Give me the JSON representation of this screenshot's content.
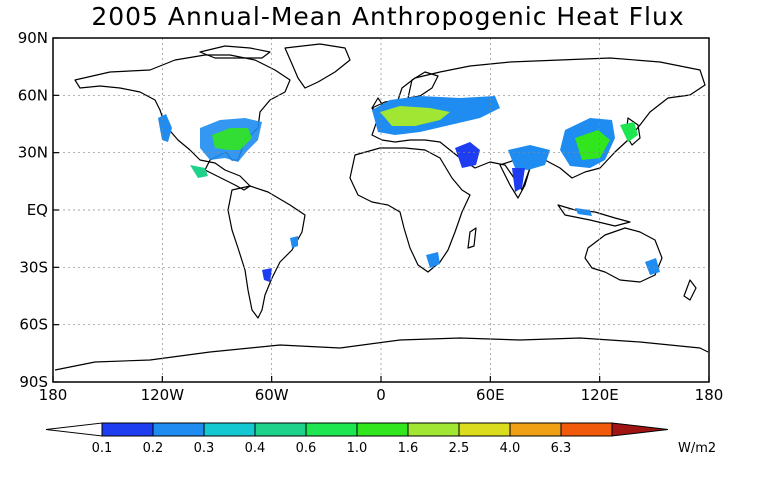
{
  "title": "2005 Annual-Mean Anthropogenic Heat Flux",
  "map": {
    "lat_labels": [
      "90N",
      "60N",
      "30N",
      "EQ",
      "30S",
      "60S",
      "90S"
    ],
    "lat_values": [
      90,
      60,
      30,
      0,
      -30,
      -60,
      -90
    ],
    "lon_labels": [
      "180",
      "120W",
      "60W",
      "0",
      "60E",
      "120E",
      "180"
    ],
    "lon_values": [
      -180,
      -120,
      -60,
      0,
      60,
      120,
      180
    ],
    "ocean_color": "#ffffff",
    "coastline_color": "#000000",
    "grid": "dotted"
  },
  "colorbar": {
    "unit": "W/m2",
    "levels": [
      "0.1",
      "0.2",
      "0.3",
      "0.4",
      "0.6",
      "1.0",
      "1.6",
      "2.5",
      "4.0",
      "6.3"
    ],
    "colors": [
      "#ffffff",
      "#1e3cf0",
      "#1e8cf0",
      "#14c8d2",
      "#1ed28c",
      "#1ee650",
      "#32e61e",
      "#a0e632",
      "#dcdc1e",
      "#f0a014",
      "#f05a0a",
      "#a01414"
    ]
  }
}
